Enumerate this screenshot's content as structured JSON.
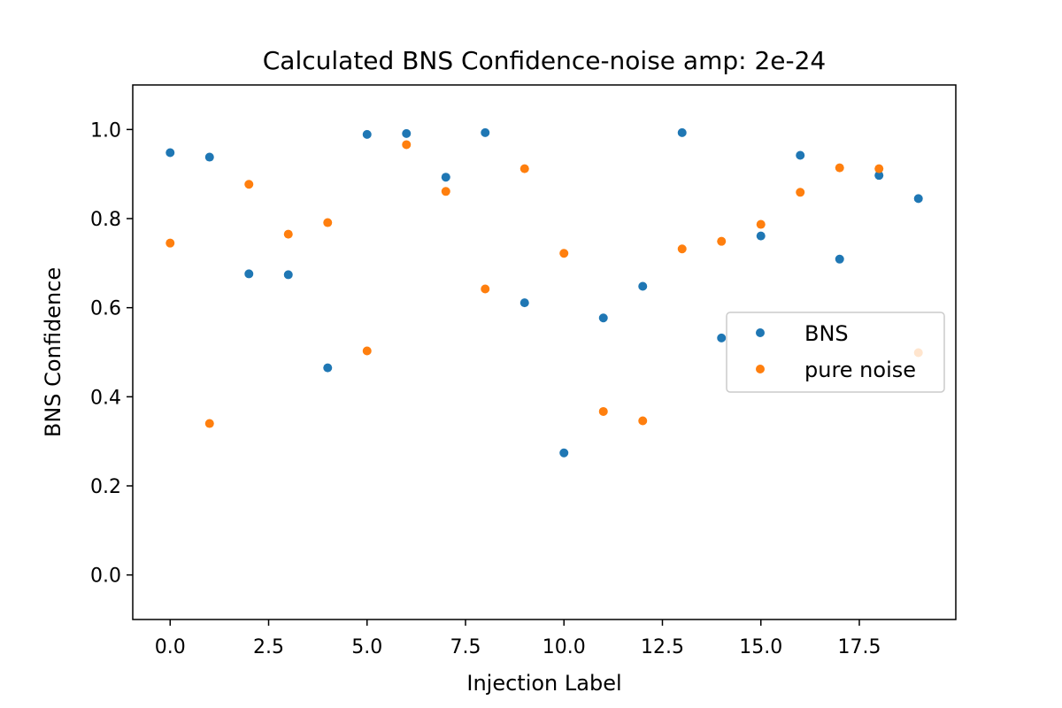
{
  "chart_data": {
    "type": "scatter",
    "title": "Calculated BNS Confidence-noise amp: 2e-24",
    "xlabel": "Injection Label",
    "ylabel": "BNS Confidence",
    "xlim": [
      -0.95,
      19.95
    ],
    "ylim": [
      -0.1,
      1.1
    ],
    "x_ticks": [
      0.0,
      2.5,
      5.0,
      7.5,
      10.0,
      12.5,
      15.0,
      17.5
    ],
    "x_tick_labels": [
      "0.0",
      "2.5",
      "5.0",
      "7.5",
      "10.0",
      "12.5",
      "15.0",
      "17.5"
    ],
    "y_ticks": [
      0.0,
      0.2,
      0.4,
      0.6,
      0.8,
      1.0
    ],
    "y_tick_labels": [
      "0.0",
      "0.2",
      "0.4",
      "0.6",
      "0.8",
      "1.0"
    ],
    "grid": false,
    "legend_position": "center-right",
    "x": [
      0,
      1,
      2,
      3,
      4,
      5,
      6,
      7,
      8,
      9,
      10,
      11,
      12,
      13,
      14,
      15,
      16,
      17,
      18,
      19
    ],
    "series": [
      {
        "name": "BNS",
        "color": "#1f77b4",
        "values": [
          0.948,
          0.938,
          0.676,
          0.674,
          0.465,
          0.989,
          0.991,
          0.893,
          0.993,
          0.611,
          0.274,
          0.577,
          0.648,
          0.993,
          0.532,
          0.761,
          0.942,
          0.709,
          0.897,
          0.845
        ]
      },
      {
        "name": "pure noise",
        "color": "#ff7f0e",
        "values": [
          0.745,
          0.34,
          0.877,
          0.765,
          0.791,
          0.503,
          0.966,
          0.861,
          0.642,
          0.912,
          0.722,
          0.367,
          0.346,
          0.732,
          0.749,
          0.787,
          0.859,
          0.914,
          0.912,
          0.499
        ]
      }
    ]
  }
}
